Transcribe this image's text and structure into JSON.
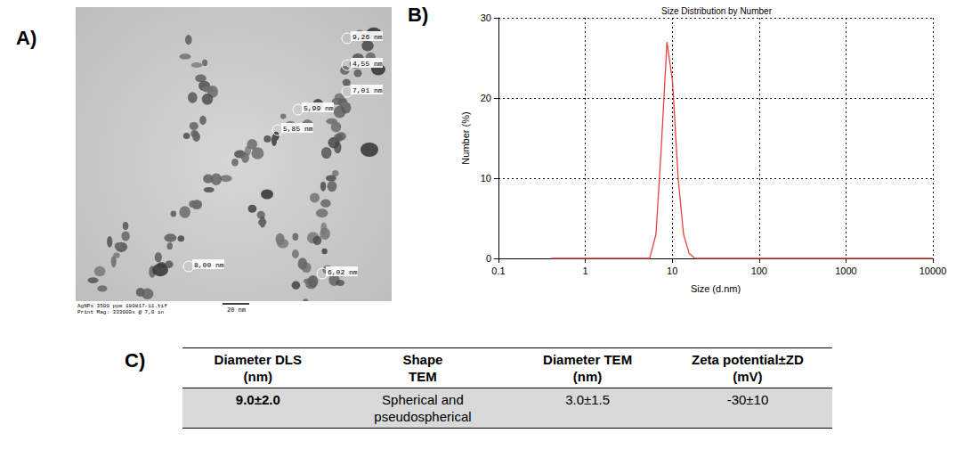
{
  "panel_letters": [
    "A)",
    "B)",
    "C)"
  ],
  "image": {
    "annotations": [
      "9,26 nm",
      "4,55 nm",
      "7,01 nm",
      "5,99 nm",
      "5,85 nm",
      "8,00 nm",
      "6,02 nm"
    ],
    "scale_bar": "20 nm",
    "caption": [
      "AgNPs 3500 ppm 180817-11.tif",
      "Print Mag: 333000x @ 7,0 in"
    ]
  },
  "chart_data": {
    "type": "line",
    "title": "Size Distribution by Number",
    "x_label": "Size (d.nm)",
    "y_label": "Number (%)",
    "x": [
      0.4,
      1,
      2,
      4,
      5.5,
      6.5,
      7.5,
      8.7,
      10.1,
      11.7,
      13.5,
      15.7,
      18.2,
      25,
      100,
      1000,
      10000
    ],
    "values": [
      0,
      0,
      0,
      0,
      0,
      3,
      14,
      27,
      22,
      10,
      3,
      0.6,
      0,
      0,
      0,
      0,
      0
    ],
    "color": "#e8413c",
    "log": "x",
    "grid": true,
    "xlim": [
      0.1,
      10000
    ],
    "xticks": [
      0.1,
      1,
      10,
      100,
      1000,
      10000
    ],
    "ylim": [
      0,
      30
    ],
    "yticks": [
      0,
      10,
      20,
      30
    ]
  },
  "table": {
    "header": [
      [
        "Diameter DLS",
        "(nm)"
      ],
      [
        "Shape",
        "TEM"
      ],
      [
        "Diameter TEM",
        "(nm)"
      ],
      [
        "Zeta potential±ZD",
        "(mV)"
      ]
    ],
    "rows": [
      [
        [
          "9.0±2.0"
        ],
        [
          "Spherical and",
          "pseudospherical"
        ],
        [
          "3.0±1.5"
        ],
        [
          "-30±10"
        ]
      ]
    ]
  }
}
